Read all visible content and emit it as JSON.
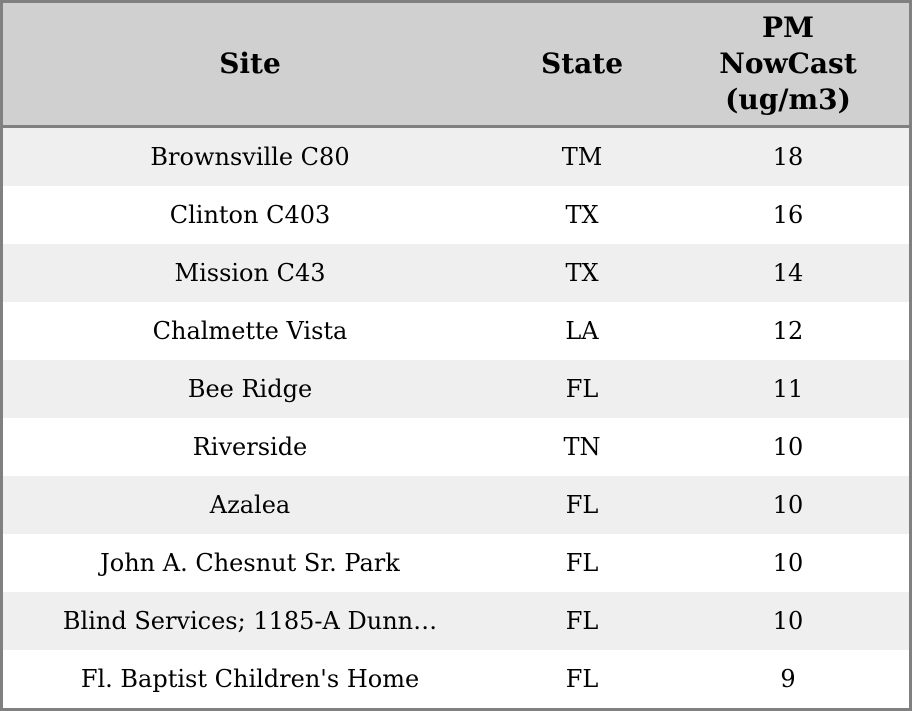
{
  "colors": {
    "header_bg": "#d0d0d0",
    "row_stripe": "#efefef",
    "row_plain": "#ffffff",
    "frame_border": "#808080",
    "text": "#000000"
  },
  "header": {
    "pm_multiline": "PM\nNowCast\n(ug/m3)"
  },
  "chart_data": {
    "type": "table",
    "columns": [
      "Site",
      "State",
      "PM NowCast (ug/m3)"
    ],
    "rows": [
      [
        "Brownsville C80",
        "TM",
        18
      ],
      [
        "Clinton C403",
        "TX",
        16
      ],
      [
        "Mission C43",
        "TX",
        14
      ],
      [
        "Chalmette Vista",
        "LA",
        12
      ],
      [
        "Bee Ridge",
        "FL",
        11
      ],
      [
        "Riverside",
        "TN",
        10
      ],
      [
        "Azalea",
        "FL",
        10
      ],
      [
        "John A. Chesnut Sr. Park",
        "FL",
        10
      ],
      [
        "Blind Services; 1185-A Dunn…",
        "FL",
        10
      ],
      [
        "Fl. Baptist Children's Home",
        "FL",
        9
      ]
    ]
  }
}
